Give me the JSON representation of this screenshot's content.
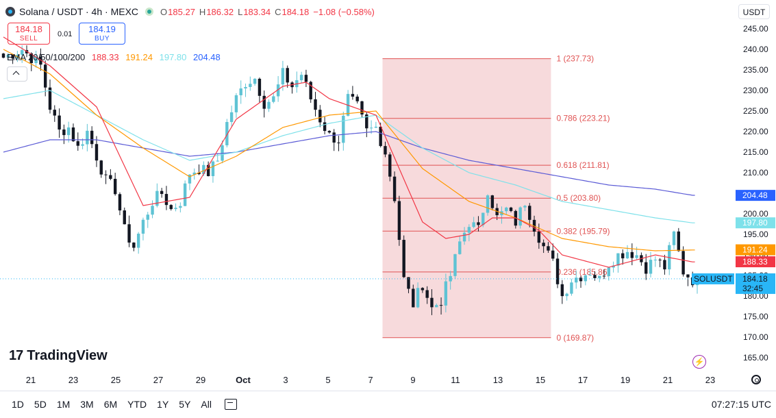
{
  "header": {
    "symbol": "Solana / USDT · 4h · MEXC",
    "o_label": "O",
    "o": "185.27",
    "h_label": "H",
    "h": "186.32",
    "l_label": "L",
    "l": "183.34",
    "c_label": "C",
    "c": "184.18",
    "change": "−1.08 (−0.58%)"
  },
  "trade": {
    "sell_price": "184.18",
    "sell_label": "SELL",
    "spread": "0.01",
    "buy_price": "184.19",
    "buy_label": "BUY"
  },
  "ema_legend": {
    "label": "EMA 20/50/100/200",
    "v20": "188.33",
    "v50": "191.24",
    "v100": "197.80",
    "v200": "204.48"
  },
  "currency_button": "USDT",
  "branding": {
    "logo_mark": "17",
    "name": "TradingView"
  },
  "bolt_icon": "⚡",
  "timeframes": [
    "1D",
    "5D",
    "1M",
    "3M",
    "6M",
    "YTD",
    "1Y",
    "5Y",
    "All"
  ],
  "clock": "07:27:15 UTC",
  "colors": {
    "up": "#26a69a",
    "up_body": "#5fc3d4",
    "down": "#131722",
    "ema20": "#f23645",
    "ema50": "#ff9800",
    "ema100": "#7ee1ea",
    "ema200": "#5b5bd6",
    "fib": "#e05252",
    "fib_zone": "#f4cdd0",
    "price_tag": "#29b6f6"
  },
  "chart_data": {
    "type": "candlestick",
    "ylim": [
      162,
      247
    ],
    "y_ticks": [
      165,
      170,
      175,
      180,
      185,
      190,
      195,
      200,
      205,
      210,
      215,
      220,
      225,
      230,
      235,
      240,
      245
    ],
    "x_ticks": [
      "21",
      "23",
      "25",
      "27",
      "29",
      "Oct",
      "3",
      "5",
      "7",
      "9",
      "11",
      "13",
      "15",
      "17",
      "19",
      "21",
      "23"
    ],
    "price_tags": [
      {
        "label": "204.48",
        "value": 204.48,
        "color": "#2962ff"
      },
      {
        "label": "197.80",
        "value": 197.8,
        "color": "#7ee1ea"
      },
      {
        "label": "191.24",
        "value": 191.24,
        "color": "#ff9800"
      },
      {
        "label": "188.33",
        "value": 188.33,
        "color": "#f23645"
      },
      {
        "label": "184.18",
        "value": 184.18,
        "color": "#29b6f6",
        "symbol": "SOLUSDT",
        "countdown": "32:45"
      }
    ],
    "fibonacci": [
      {
        "label": "1 (237.73)",
        "value": 237.73
      },
      {
        "label": "0.786 (223.21)",
        "value": 223.21
      },
      {
        "label": "0.618 (211.81)",
        "value": 211.81
      },
      {
        "label": "0.5 (203.80)",
        "value": 203.8
      },
      {
        "label": "0.382 (195.79)",
        "value": 195.79
      },
      {
        "label": "0.236 (185.86)",
        "value": 185.86
      },
      {
        "label": "0 (169.87)",
        "value": 169.87
      }
    ],
    "close_path": [
      [
        0,
        238
      ],
      [
        4,
        240
      ],
      [
        8,
        236
      ],
      [
        10,
        226
      ],
      [
        12,
        220
      ],
      [
        14,
        221
      ],
      [
        16,
        216
      ],
      [
        18,
        220
      ],
      [
        20,
        214
      ],
      [
        22,
        208
      ],
      [
        24,
        206
      ],
      [
        26,
        196
      ],
      [
        28,
        192
      ],
      [
        30,
        198
      ],
      [
        32,
        203
      ],
      [
        34,
        205
      ],
      [
        36,
        201
      ],
      [
        38,
        203
      ],
      [
        40,
        210
      ],
      [
        42,
        211
      ],
      [
        44,
        210
      ],
      [
        46,
        213
      ],
      [
        48,
        222
      ],
      [
        50,
        228
      ],
      [
        52,
        232
      ],
      [
        54,
        233
      ],
      [
        56,
        227
      ],
      [
        58,
        228
      ],
      [
        60,
        234
      ],
      [
        62,
        231
      ],
      [
        64,
        234
      ],
      [
        66,
        228
      ],
      [
        68,
        223
      ],
      [
        70,
        219
      ],
      [
        72,
        218
      ],
      [
        74,
        228
      ],
      [
        76,
        226
      ],
      [
        78,
        220
      ],
      [
        80,
        221
      ],
      [
        82,
        215
      ],
      [
        84,
        204
      ],
      [
        86,
        184
      ],
      [
        88,
        178
      ],
      [
        90,
        183
      ],
      [
        92,
        177
      ],
      [
        94,
        179
      ],
      [
        96,
        185
      ],
      [
        98,
        193
      ],
      [
        100,
        198
      ],
      [
        102,
        196
      ],
      [
        104,
        206
      ],
      [
        106,
        199
      ],
      [
        108,
        201
      ],
      [
        110,
        198
      ],
      [
        112,
        203
      ],
      [
        114,
        197
      ],
      [
        116,
        192
      ],
      [
        118,
        188
      ],
      [
        120,
        180
      ],
      [
        122,
        184
      ],
      [
        124,
        185
      ],
      [
        126,
        186
      ],
      [
        128,
        184
      ],
      [
        130,
        188
      ],
      [
        132,
        190
      ],
      [
        134,
        191
      ],
      [
        136,
        190
      ],
      [
        138,
        187
      ],
      [
        140,
        189
      ],
      [
        142,
        187
      ],
      [
        144,
        195
      ],
      [
        146,
        186
      ],
      [
        148,
        184
      ]
    ],
    "ema20": [
      [
        0,
        243
      ],
      [
        10,
        236
      ],
      [
        20,
        226
      ],
      [
        30,
        202
      ],
      [
        40,
        204
      ],
      [
        50,
        223
      ],
      [
        60,
        231
      ],
      [
        65,
        232
      ],
      [
        70,
        228
      ],
      [
        80,
        224
      ],
      [
        90,
        198
      ],
      [
        95,
        194
      ],
      [
        100,
        195
      ],
      [
        105,
        199
      ],
      [
        110,
        199
      ],
      [
        115,
        196
      ],
      [
        120,
        190
      ],
      [
        130,
        187
      ],
      [
        140,
        190
      ],
      [
        148,
        188.3
      ]
    ],
    "ema50": [
      [
        0,
        240
      ],
      [
        10,
        234
      ],
      [
        20,
        224
      ],
      [
        30,
        216
      ],
      [
        40,
        209
      ],
      [
        50,
        214
      ],
      [
        60,
        221
      ],
      [
        70,
        224
      ],
      [
        80,
        225
      ],
      [
        90,
        211
      ],
      [
        100,
        203
      ],
      [
        110,
        199
      ],
      [
        120,
        194
      ],
      [
        130,
        192
      ],
      [
        140,
        191
      ],
      [
        148,
        191.2
      ]
    ],
    "ema100": [
      [
        0,
        228
      ],
      [
        10,
        230
      ],
      [
        20,
        224
      ],
      [
        30,
        218
      ],
      [
        40,
        213
      ],
      [
        50,
        215
      ],
      [
        60,
        219
      ],
      [
        70,
        222
      ],
      [
        80,
        224
      ],
      [
        90,
        216
      ],
      [
        100,
        210
      ],
      [
        110,
        207
      ],
      [
        120,
        203
      ],
      [
        130,
        201
      ],
      [
        140,
        199
      ],
      [
        148,
        197.8
      ]
    ],
    "ema200": [
      [
        0,
        215
      ],
      [
        10,
        218
      ],
      [
        20,
        218
      ],
      [
        30,
        216
      ],
      [
        40,
        214
      ],
      [
        50,
        215
      ],
      [
        60,
        217
      ],
      [
        70,
        219
      ],
      [
        80,
        220
      ],
      [
        90,
        216
      ],
      [
        100,
        213
      ],
      [
        110,
        211
      ],
      [
        120,
        209
      ],
      [
        130,
        207
      ],
      [
        140,
        206
      ],
      [
        148,
        204.5
      ]
    ]
  }
}
